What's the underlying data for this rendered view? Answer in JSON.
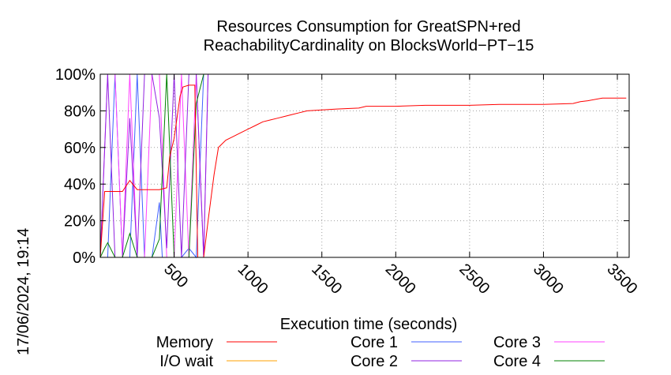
{
  "timestamp": "17/06/2024, 19:14",
  "chart_data": {
    "type": "line",
    "title": "Resources Consumption for GreatSPN+red",
    "subtitle": "ReachabilityCardinality on BlocksWorld−PT−15",
    "xlabel": "Execution time (seconds)",
    "ylabel": "",
    "xlim": [
      0,
      3580
    ],
    "ylim": [
      0,
      100
    ],
    "x_ticks": [
      500,
      1000,
      1500,
      2000,
      2500,
      3000,
      3500
    ],
    "y_ticks": [
      {
        "value": 0,
        "label": "0%"
      },
      {
        "value": 20,
        "label": "20%"
      },
      {
        "value": 40,
        "label": "40%"
      },
      {
        "value": 60,
        "label": "60%"
      },
      {
        "value": 80,
        "label": "80%"
      },
      {
        "value": 100,
        "label": "100%"
      }
    ],
    "grid": true,
    "legend_position": "bottom",
    "series": [
      {
        "name": "Memory",
        "color": "#ff0000",
        "points": [
          [
            0,
            0
          ],
          [
            30,
            36
          ],
          [
            55,
            36
          ],
          [
            150,
            36
          ],
          [
            200,
            42
          ],
          [
            250,
            37
          ],
          [
            300,
            37
          ],
          [
            400,
            37
          ],
          [
            450,
            38
          ],
          [
            470,
            55
          ],
          [
            500,
            65
          ],
          [
            540,
            88
          ],
          [
            560,
            93
          ],
          [
            600,
            94
          ],
          [
            640,
            94
          ],
          [
            660,
            0
          ],
          [
            700,
            0
          ],
          [
            730,
            20
          ],
          [
            770,
            45
          ],
          [
            800,
            60
          ],
          [
            850,
            64
          ],
          [
            900,
            66
          ],
          [
            950,
            68
          ],
          [
            1000,
            70
          ],
          [
            1050,
            72
          ],
          [
            1100,
            74
          ],
          [
            1150,
            75
          ],
          [
            1200,
            76
          ],
          [
            1250,
            77
          ],
          [
            1300,
            78
          ],
          [
            1350,
            79
          ],
          [
            1400,
            80
          ],
          [
            1500,
            80.5
          ],
          [
            1600,
            81
          ],
          [
            1750,
            81.5
          ],
          [
            1800,
            82.5
          ],
          [
            2000,
            82.5
          ],
          [
            2200,
            83
          ],
          [
            2500,
            83
          ],
          [
            2700,
            83.5
          ],
          [
            3000,
            83.5
          ],
          [
            3200,
            84
          ],
          [
            3250,
            85
          ],
          [
            3300,
            85.5
          ],
          [
            3400,
            87
          ],
          [
            3560,
            87
          ]
        ]
      },
      {
        "name": "Core 1",
        "color": "#4060ff",
        "points": [
          [
            0,
            0
          ],
          [
            50,
            0
          ],
          [
            100,
            100
          ],
          [
            150,
            0
          ],
          [
            200,
            0
          ],
          [
            250,
            100
          ],
          [
            300,
            0
          ],
          [
            350,
            0
          ],
          [
            400,
            30
          ],
          [
            420,
            0
          ],
          [
            450,
            0
          ],
          [
            500,
            0
          ],
          [
            550,
            0
          ],
          [
            600,
            5
          ],
          [
            650,
            0
          ],
          [
            700,
            100
          ],
          [
            730,
            100
          ],
          [
            3560,
            100
          ]
        ]
      },
      {
        "name": "I/O wait",
        "color": "#ffa000",
        "points": [
          [
            0,
            0
          ],
          [
            3560,
            0
          ]
        ]
      },
      {
        "name": "Core 2",
        "color": "#9020e0",
        "points": [
          [
            0,
            0
          ],
          [
            50,
            100
          ],
          [
            100,
            0
          ],
          [
            150,
            0
          ],
          [
            200,
            76
          ],
          [
            250,
            0
          ],
          [
            300,
            100
          ],
          [
            350,
            100
          ],
          [
            400,
            76
          ],
          [
            450,
            5
          ],
          [
            500,
            100
          ],
          [
            550,
            0
          ],
          [
            600,
            100
          ],
          [
            650,
            100
          ],
          [
            700,
            0
          ],
          [
            730,
            100
          ],
          [
            3560,
            100
          ]
        ]
      },
      {
        "name": "Core 3",
        "color": "#ff40ff",
        "points": [
          [
            0,
            0
          ],
          [
            50,
            100
          ],
          [
            100,
            100
          ],
          [
            150,
            0
          ],
          [
            200,
            100
          ],
          [
            250,
            0
          ],
          [
            300,
            0
          ],
          [
            350,
            100
          ],
          [
            400,
            100
          ],
          [
            450,
            0
          ],
          [
            500,
            0
          ],
          [
            550,
            100
          ],
          [
            600,
            0
          ],
          [
            650,
            100
          ],
          [
            700,
            0
          ],
          [
            730,
            100
          ],
          [
            3560,
            100
          ]
        ]
      },
      {
        "name": "Core 4",
        "color": "#008000",
        "points": [
          [
            0,
            0
          ],
          [
            30,
            5
          ],
          [
            50,
            8
          ],
          [
            100,
            0
          ],
          [
            150,
            0
          ],
          [
            200,
            13
          ],
          [
            250,
            0
          ],
          [
            300,
            0
          ],
          [
            350,
            0
          ],
          [
            400,
            10
          ],
          [
            450,
            100
          ],
          [
            500,
            0
          ],
          [
            550,
            0
          ],
          [
            600,
            0
          ],
          [
            650,
            84
          ],
          [
            700,
            100
          ],
          [
            3560,
            100
          ]
        ]
      }
    ],
    "legend": [
      {
        "label": "Memory",
        "color": "#ff0000"
      },
      {
        "label": "I/O wait",
        "color": "#ffa000"
      },
      {
        "label": "Core 1",
        "color": "#4060ff"
      },
      {
        "label": "Core 2",
        "color": "#9020e0"
      },
      {
        "label": "Core 3",
        "color": "#ff40ff"
      },
      {
        "label": "Core 4",
        "color": "#008000"
      }
    ]
  }
}
